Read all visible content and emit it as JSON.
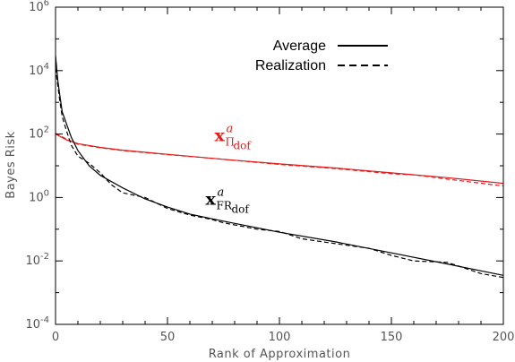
{
  "chart_data": {
    "type": "line",
    "title": "",
    "xlabel": "Rank of Approximation",
    "ylabel": "Bayes Risk",
    "xlim": [
      0,
      200
    ],
    "ylim": [
      0.0001,
      1000000
    ],
    "yscale": "log",
    "grid": false,
    "x_ticks": [
      {
        "value": 0,
        "label": "0"
      },
      {
        "value": 50,
        "label": "50"
      },
      {
        "value": 100,
        "label": "100"
      },
      {
        "value": 150,
        "label": "150"
      },
      {
        "value": 200,
        "label": "200"
      }
    ],
    "y_ticks": [
      {
        "value": 0.0001,
        "base": "10",
        "exp": "-4"
      },
      {
        "value": 0.01,
        "base": "10",
        "exp": "-2"
      },
      {
        "value": 1,
        "base": "10",
        "exp": "0"
      },
      {
        "value": 100,
        "base": "10",
        "exp": "2"
      },
      {
        "value": 10000,
        "base": "10",
        "exp": "4"
      },
      {
        "value": 1000000,
        "base": "10",
        "exp": "6"
      }
    ],
    "legend": {
      "position": "top-right",
      "entries": [
        {
          "label": "Average",
          "style": "solid"
        },
        {
          "label": "Realization",
          "style": "dashed"
        }
      ]
    },
    "annotations": [
      {
        "id": "pi",
        "main": "x",
        "sup": "a",
        "sub": "Π",
        "subsub": "dof",
        "color": "#e41a1c",
        "x": 71,
        "y": 60
      },
      {
        "id": "fr",
        "main": "x",
        "sup": "a",
        "sub": "FR",
        "subsub": "dof",
        "color": "#000000",
        "x": 67,
        "y": 0.6
      }
    ],
    "series": [
      {
        "curve": "pi",
        "line": "solid",
        "color": "#e41a1c",
        "x": [
          0,
          5,
          10,
          20,
          30,
          50,
          75,
          100,
          125,
          150,
          175,
          200
        ],
        "y": [
          100,
          65,
          50,
          38,
          31,
          23,
          16,
          11.5,
          8.5,
          6,
          4.2,
          2.8
        ]
      },
      {
        "curve": "pi",
        "line": "dashed",
        "color": "#e41a1c",
        "x": [
          0,
          5,
          10,
          20,
          30,
          50,
          75,
          100,
          125,
          150,
          160,
          175,
          200
        ],
        "y": [
          105,
          68,
          48,
          37,
          30,
          22.5,
          16,
          11,
          8.2,
          5.6,
          5.2,
          3.8,
          2.3
        ]
      },
      {
        "curve": "fr",
        "line": "solid",
        "color": "#000000",
        "x": [
          0,
          1,
          2,
          3,
          5,
          7,
          10,
          15,
          20,
          30,
          40,
          50,
          60,
          75,
          100,
          125,
          150,
          175,
          200
        ],
        "y": [
          30000,
          5000,
          1500,
          500,
          200,
          80,
          30,
          10,
          5,
          2,
          0.9,
          0.5,
          0.3,
          0.18,
          0.08,
          0.04,
          0.018,
          0.008,
          0.0035
        ]
      },
      {
        "curve": "fr",
        "line": "dashed",
        "color": "#000000",
        "x": [
          0,
          1,
          2,
          3,
          5,
          7,
          10,
          15,
          20,
          25,
          30,
          40,
          50,
          60,
          70,
          75,
          90,
          100,
          110,
          125,
          140,
          150,
          160,
          175,
          190,
          200
        ],
        "y": [
          12000,
          3500,
          1000,
          350,
          120,
          45,
          20,
          12,
          6,
          2.5,
          1.4,
          1,
          0.45,
          0.28,
          0.2,
          0.16,
          0.1,
          0.085,
          0.05,
          0.035,
          0.025,
          0.015,
          0.01,
          0.009,
          0.004,
          0.003
        ]
      }
    ]
  }
}
